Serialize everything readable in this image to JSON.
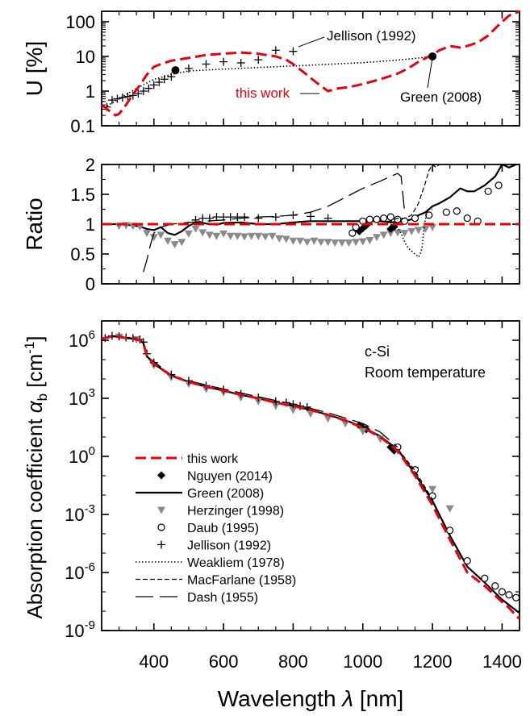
{
  "xaxis": {
    "label_prefix": "Wavelength ",
    "label_symbol": "λ",
    "label_suffix": " [nm]",
    "range": [
      250,
      1450
    ],
    "ticks": [
      400,
      600,
      800,
      1000,
      1200,
      1400
    ],
    "tick_labels": [
      "400",
      "600",
      "800",
      "1000",
      "1200",
      "1400"
    ]
  },
  "chart_data": [
    {
      "type": "line",
      "ylabel": "U [%]",
      "yscale": "log",
      "ylim": [
        0.1,
        200
      ],
      "yticks": [
        0.1,
        1,
        10,
        100
      ],
      "ytick_labels": [
        "0.1",
        "1",
        "10",
        "100"
      ],
      "annotations": [
        {
          "text": "Jellison (1992)",
          "color": "#000000"
        },
        {
          "text": "this work",
          "color": "#e8000b"
        },
        {
          "text": "Green (2008)",
          "color": "#000000"
        }
      ],
      "series": [
        {
          "name": "this work",
          "style": "dashed",
          "color": "#e8000b",
          "x": [
            250,
            270,
            290,
            300,
            320,
            340,
            360,
            380,
            400,
            420,
            450,
            500,
            550,
            600,
            650,
            700,
            750,
            780,
            800,
            830,
            860,
            880,
            900,
            930,
            960,
            1000,
            1050,
            1100,
            1130,
            1160,
            1190,
            1220,
            1250,
            1280,
            1300,
            1330,
            1360,
            1390,
            1420,
            1450
          ],
          "y": [
            0.4,
            0.28,
            0.2,
            0.22,
            0.4,
            0.8,
            1.5,
            3.0,
            5.0,
            6.0,
            7.5,
            9.0,
            11,
            12,
            13,
            12,
            10,
            8,
            6,
            3.5,
            2,
            1.4,
            1.0,
            1.2,
            1.3,
            1.6,
            2.2,
            3.2,
            4.5,
            7,
            10,
            15,
            20,
            18,
            20,
            25,
            40,
            80,
            150,
            200
          ]
        },
        {
          "name": "Jellison (1992)",
          "style": "plus",
          "color": "#000000",
          "x": [
            265,
            280,
            295,
            310,
            325,
            340,
            355,
            370,
            385,
            400,
            415,
            430,
            450,
            500,
            550,
            600,
            650,
            700,
            750,
            800
          ],
          "y": [
            0.35,
            0.55,
            0.6,
            0.65,
            0.7,
            0.75,
            0.85,
            1.0,
            1.2,
            1.5,
            1.8,
            2.2,
            2.6,
            4.5,
            6,
            7,
            6.5,
            8,
            15,
            14
          ]
        },
        {
          "name": "Green (2008)",
          "style": "dotted",
          "color": "#000000",
          "x": [
            250,
            300,
            350,
            400,
            450,
            500,
            600,
            700,
            800,
            900,
            1000,
            1100,
            1150,
            1200
          ],
          "y": [
            0.3,
            0.6,
            1.2,
            2.2,
            3.0,
            3.8,
            4.3,
            4.8,
            5.3,
            5.9,
            6.6,
            7.8,
            8.8,
            10
          ]
        }
      ],
      "markers": [
        {
          "name": "this work reference",
          "x": 462,
          "y": 4.0
        },
        {
          "name": "Green (2008) reference",
          "x": 1200,
          "y": 10
        }
      ]
    },
    {
      "type": "line",
      "ylabel": "Ratio",
      "yscale": "linear",
      "ylim": [
        0,
        2
      ],
      "yticks": [
        0,
        0.5,
        1,
        1.5,
        2
      ],
      "ytick_labels": [
        "0",
        "0.5",
        "1",
        "1.5",
        "2"
      ],
      "series": [
        {
          "name": "this work",
          "style": "dashed",
          "color": "#e8000b",
          "x": [
            250,
            1450
          ],
          "y": [
            1,
            1
          ]
        },
        {
          "name": "Green (2008)",
          "style": "solid",
          "color": "#000000",
          "x": [
            250,
            300,
            340,
            360,
            380,
            400,
            420,
            440,
            460,
            480,
            500,
            520,
            540,
            560,
            580,
            600,
            650,
            700,
            750,
            800,
            850,
            900,
            950,
            1000,
            1050,
            1080,
            1100,
            1120,
            1140,
            1160,
            1180,
            1200,
            1220,
            1250,
            1280,
            1300,
            1320,
            1350,
            1380,
            1400,
            1420,
            1440
          ],
          "y": [
            1.0,
            1.0,
            0.98,
            0.96,
            0.92,
            0.9,
            0.95,
            0.85,
            0.82,
            0.88,
            0.97,
            1.03,
            1.02,
            1.0,
            0.99,
            1.02,
            1.03,
            1.0,
            1.0,
            1.03,
            1.05,
            1.05,
            1.05,
            1.05,
            1.05,
            1.03,
            1.04,
            1.05,
            1.08,
            1.15,
            1.2,
            1.3,
            1.35,
            1.45,
            1.6,
            1.55,
            1.55,
            1.65,
            1.8,
            2.0,
            1.95,
            2.0
          ]
        },
        {
          "name": "Herzinger (1998)",
          "style": "triangle",
          "color": "#8a8a8a",
          "x": [
            300,
            320,
            340,
            360,
            380,
            400,
            420,
            440,
            460,
            480,
            500,
            520,
            540,
            560,
            580,
            600,
            620,
            640,
            660,
            680,
            700,
            720,
            740,
            760,
            780,
            800,
            820,
            840,
            860,
            880,
            900,
            920,
            940,
            960,
            980,
            1000,
            1020,
            1040,
            1060,
            1080,
            1100,
            1120,
            1140,
            1160,
            1180,
            1200
          ],
          "y": [
            0.97,
            0.98,
            0.97,
            0.96,
            0.85,
            0.78,
            0.82,
            0.72,
            0.66,
            0.7,
            0.84,
            0.92,
            0.86,
            0.82,
            0.8,
            0.84,
            0.8,
            0.8,
            0.79,
            0.8,
            0.8,
            0.79,
            0.8,
            0.76,
            0.75,
            0.72,
            0.72,
            0.7,
            0.72,
            0.7,
            0.7,
            0.69,
            0.69,
            0.69,
            0.7,
            0.71,
            0.73,
            0.78,
            0.82,
            0.85,
            0.86,
            0.85,
            0.88,
            0.9,
            0.92,
            0.95
          ]
        },
        {
          "name": "Nguyen (2014)",
          "style": "diamond",
          "color": "#000000",
          "x": [
            990,
            1000,
            1010,
            1080,
            1090
          ],
          "y": [
            0.88,
            0.93,
            0.98,
            0.92,
            0.96
          ]
        },
        {
          "name": "Daub (1995)",
          "style": "circle",
          "color": "#000000",
          "x": [
            970,
            980,
            1000,
            1020,
            1040,
            1060,
            1080,
            1100,
            1120,
            1150,
            1190,
            1240,
            1270,
            1300,
            1330,
            1360,
            1390
          ],
          "y": [
            0.85,
            0.95,
            1.05,
            1.08,
            1.08,
            1.1,
            1.12,
            1.08,
            1.05,
            1.1,
            1.15,
            1.2,
            1.22,
            1.1,
            1.05,
            1.55,
            1.65
          ]
        },
        {
          "name": "Jellison (1992)",
          "style": "plus",
          "color": "#000000",
          "x": [
            520,
            540,
            560,
            580,
            600,
            620,
            640,
            660,
            700,
            750,
            800,
            850,
            900
          ],
          "y": [
            1.07,
            1.1,
            1.1,
            1.12,
            1.12,
            1.12,
            1.12,
            1.12,
            1.1,
            1.12,
            1.15,
            1.13,
            1.1
          ]
        },
        {
          "name": "Weakliem (1978)",
          "style": "dotted",
          "color": "#000000",
          "x": [
            1080,
            1100,
            1110,
            1120,
            1130,
            1150,
            1160,
            1165,
            1170,
            1175,
            1180,
            1185,
            1190,
            1200
          ],
          "y": [
            1.0,
            0.95,
            0.85,
            0.7,
            0.6,
            0.5,
            0.45,
            0.5,
            0.6,
            0.9,
            1.1,
            1.2,
            1.25,
            1.25
          ]
        },
        {
          "name": "MacFarlane (1958)",
          "style": "shortdash",
          "color": "#000000",
          "x": [
            1050,
            1080,
            1100,
            1120,
            1140,
            1160,
            1180,
            1190,
            1200,
            1210,
            1220
          ],
          "y": [
            1.05,
            1.05,
            1.1,
            1.1,
            1.15,
            1.35,
            1.7,
            1.9,
            2.0,
            1.95,
            2.0
          ]
        },
        {
          "name": "Dash (1955)",
          "style": "longdash",
          "color": "#000000",
          "x": [
            370,
            380,
            390,
            400,
            420,
            450,
            500,
            550,
            600,
            650,
            700,
            750,
            800,
            850,
            900,
            950,
            1000,
            1050,
            1080,
            1100,
            1110,
            1120
          ],
          "y": [
            0.2,
            0.4,
            0.65,
            0.85,
            0.95,
            1.0,
            1.03,
            1.05,
            1.07,
            1.1,
            1.12,
            1.13,
            1.15,
            1.2,
            1.3,
            1.45,
            1.6,
            1.72,
            1.8,
            1.85,
            1.8,
            1.2
          ]
        }
      ]
    },
    {
      "type": "line",
      "ylabel_prefix": "Absorption coefficient ",
      "ylabel_symbol": "α",
      "ylabel_sub": "b",
      "ylabel_unit_open": " [cm",
      "ylabel_unit_sup": "-1",
      "ylabel_unit_close": "]",
      "yscale": "log",
      "ylim": [
        1e-09,
        10000000.0
      ],
      "ytick_base": "10",
      "ytick_exponents": [
        "-9",
        "-6",
        "-3",
        "0",
        "3",
        "6"
      ],
      "annotations": [
        {
          "text": "c-Si"
        },
        {
          "text": "Room temperature"
        }
      ],
      "legend": {
        "placement": "bottom-left"
      },
      "series": [
        {
          "name": "this work",
          "style": "dashed",
          "color": "#e8000b",
          "x": [
            250,
            280,
            300,
            320,
            340,
            360,
            370,
            380,
            400,
            450,
            500,
            550,
            600,
            650,
            700,
            750,
            800,
            850,
            900,
            950,
            1000,
            1050,
            1100,
            1150,
            1200,
            1250,
            1300,
            1350,
            1400,
            1420,
            1440,
            1450
          ],
          "y": [
            1200000.0,
            1600000.0,
            1500000.0,
            1300000.0,
            1200000.0,
            1000000.0,
            700000.0,
            150000.0,
            60000.0,
            15000.0,
            7000.0,
            4000.0,
            2500.0,
            1500.0,
            1000.0,
            600.0,
            400.0,
            250.0,
            140.0,
            70.0,
            30.0,
            10.0,
            2,
            0.1,
            0.003,
            5e-05,
            1e-06,
            2e-07,
            3e-08,
            1.5e-08,
            6e-09,
            4e-09
          ]
        },
        {
          "name": "Nguyen (2014)",
          "style": "diamond",
          "color": "#000000",
          "x": [
            990,
            1000,
            1010,
            1080,
            1090
          ],
          "y": [
            40,
            30,
            25,
            3,
            2
          ]
        },
        {
          "name": "Green (2008)",
          "style": "solid",
          "color": "#000000",
          "x": [
            250,
            280,
            300,
            320,
            340,
            360,
            370,
            380,
            400,
            450,
            500,
            550,
            600,
            650,
            700,
            750,
            800,
            850,
            900,
            950,
            1000,
            1050,
            1100,
            1150,
            1200,
            1250,
            1300,
            1350,
            1400,
            1450
          ],
          "y": [
            1200000.0,
            1600000.0,
            1500000.0,
            1300000.0,
            1200000.0,
            1000000.0,
            700000.0,
            150000.0,
            60000.0,
            15000.0,
            7000.0,
            4000.0,
            2500.0,
            1500.0,
            1000.0,
            600.0,
            400.0,
            250.0,
            140.0,
            75.0,
            32.0,
            11.0,
            2.3,
            0.12,
            0.005,
            8e-05,
            2e-06,
            3e-07,
            4e-08,
            8e-09
          ]
        },
        {
          "name": "Herzinger (1998)",
          "style": "triangle",
          "color": "#8a8a8a",
          "x": [
            300,
            350,
            400,
            450,
            500,
            550,
            600,
            650,
            700,
            750,
            800,
            850,
            900,
            950,
            1000,
            1050,
            1100,
            1150,
            1200,
            1250
          ],
          "y": [
            1500000.0,
            1100000.0,
            50000.0,
            12000.0,
            5500.0,
            3000.0,
            2000.0,
            1100.0,
            700.0,
            400.0,
            250.0,
            160.0,
            90.0,
            50.0,
            20.0,
            8,
            2,
            0.2,
            0.02,
            0.002
          ]
        },
        {
          "name": "Daub (1995)",
          "style": "circle",
          "color": "#000000",
          "x": [
            1100,
            1150,
            1200,
            1250,
            1300,
            1350,
            1380,
            1400,
            1420,
            1440
          ],
          "y": [
            3,
            0.2,
            0.009,
            0.00015,
            4e-06,
            5e-07,
            2e-07,
            1e-07,
            7e-08,
            5e-08
          ]
        },
        {
          "name": "Jellison (1992)",
          "style": "plus",
          "color": "#000000",
          "x": [
            260,
            280,
            300,
            320,
            340,
            360,
            370,
            380,
            400,
            450,
            500,
            550,
            600,
            650,
            700,
            750,
            780,
            800,
            820,
            840
          ],
          "y": [
            1300000.0,
            1700000.0,
            1600000.0,
            1400000.0,
            1300000.0,
            1100000.0,
            800000.0,
            200000.0,
            70000.0,
            17000.0,
            8000.0,
            4500.0,
            2800.0,
            1700.0,
            1100.0,
            700.0,
            600.0,
            500.0,
            400.0,
            350.0
          ]
        },
        {
          "name": "Weakliem (1978)",
          "style": "dotted",
          "color": "#000000",
          "x": [
            1050,
            1100,
            1150,
            1200
          ],
          "y": [
            10.0,
            2,
            0.15,
            0.004
          ]
        },
        {
          "name": "MacFarlane (1958)",
          "style": "shortdash",
          "color": "#000000",
          "x": [
            1050,
            1100,
            1150,
            1200,
            1220
          ],
          "y": [
            11.0,
            2.5,
            0.18,
            0.006,
            0.001
          ]
        },
        {
          "name": "Dash (1955)",
          "style": "longdash",
          "color": "#000000",
          "x": [
            380,
            450,
            500,
            600,
            700,
            800,
            900,
            1000,
            1050,
            1100
          ],
          "y": [
            150000.0,
            16000.0,
            8000.0,
            3000.0,
            1200.0,
            500.0,
            180.0,
            50.0,
            18.0,
            3
          ]
        }
      ]
    }
  ]
}
